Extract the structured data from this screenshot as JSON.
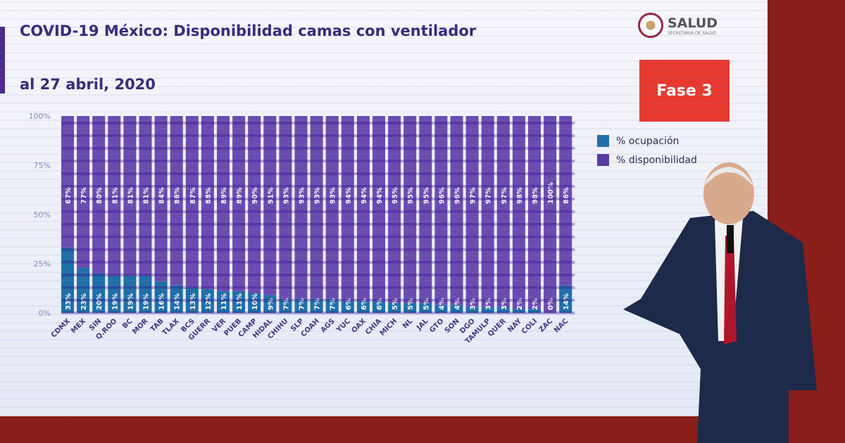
{
  "title": "COVID-19 México: Disponibilidad camas con ventilador",
  "subtitle": "al 27 abril, 2020",
  "logo": {
    "text": "SALUD",
    "subtext": "SECRETARÍA DE SALUD"
  },
  "badge": "Fase 3",
  "colors": {
    "ocupacion": "#1f6fa8",
    "disponibilidad": "#5b3aa0",
    "badge": "#e8392f",
    "title": "#3a2a7a"
  },
  "chart_data": {
    "type": "bar",
    "stacked": true,
    "title": "COVID-19 México: Disponibilidad camas con ventilador",
    "subtitle": "al 27 abril, 2020",
    "ylim": [
      0,
      100
    ],
    "yticks": [
      "0%",
      "25%",
      "50%",
      "75%",
      "100%"
    ],
    "legend_position": "right",
    "categories": [
      "CDMX",
      "MEX",
      "SIN",
      "Q.ROO",
      "BC",
      "MOR",
      "TAB",
      "TLAX",
      "BCS",
      "GUERR",
      "VER",
      "PUEB",
      "CAMP",
      "HIDAL",
      "CHIHU",
      "SLP",
      "COAH",
      "AGS",
      "YUC",
      "OAX",
      "CHIA",
      "MICH",
      "NL",
      "JAL",
      "GTO",
      "SON",
      "DGO",
      "TAMULP",
      "QUER",
      "NAY",
      "COLI",
      "ZAC",
      "NAC"
    ],
    "series": [
      {
        "name": "% ocupación",
        "values": [
          33,
          23,
          20,
          19,
          19,
          19,
          16,
          14,
          13,
          12,
          11,
          11,
          10,
          9,
          7,
          7,
          7,
          7,
          6,
          6,
          6,
          5,
          5,
          5,
          4,
          4,
          3,
          3,
          3,
          2,
          2,
          0,
          14
        ]
      },
      {
        "name": "% disponibilidad",
        "values": [
          67,
          77,
          80,
          81,
          81,
          81,
          84,
          86,
          87,
          88,
          89,
          89,
          90,
          91,
          93,
          93,
          93,
          93,
          94,
          94,
          94,
          95,
          95,
          95,
          96,
          96,
          97,
          97,
          97,
          98,
          98,
          100,
          86
        ]
      }
    ]
  }
}
